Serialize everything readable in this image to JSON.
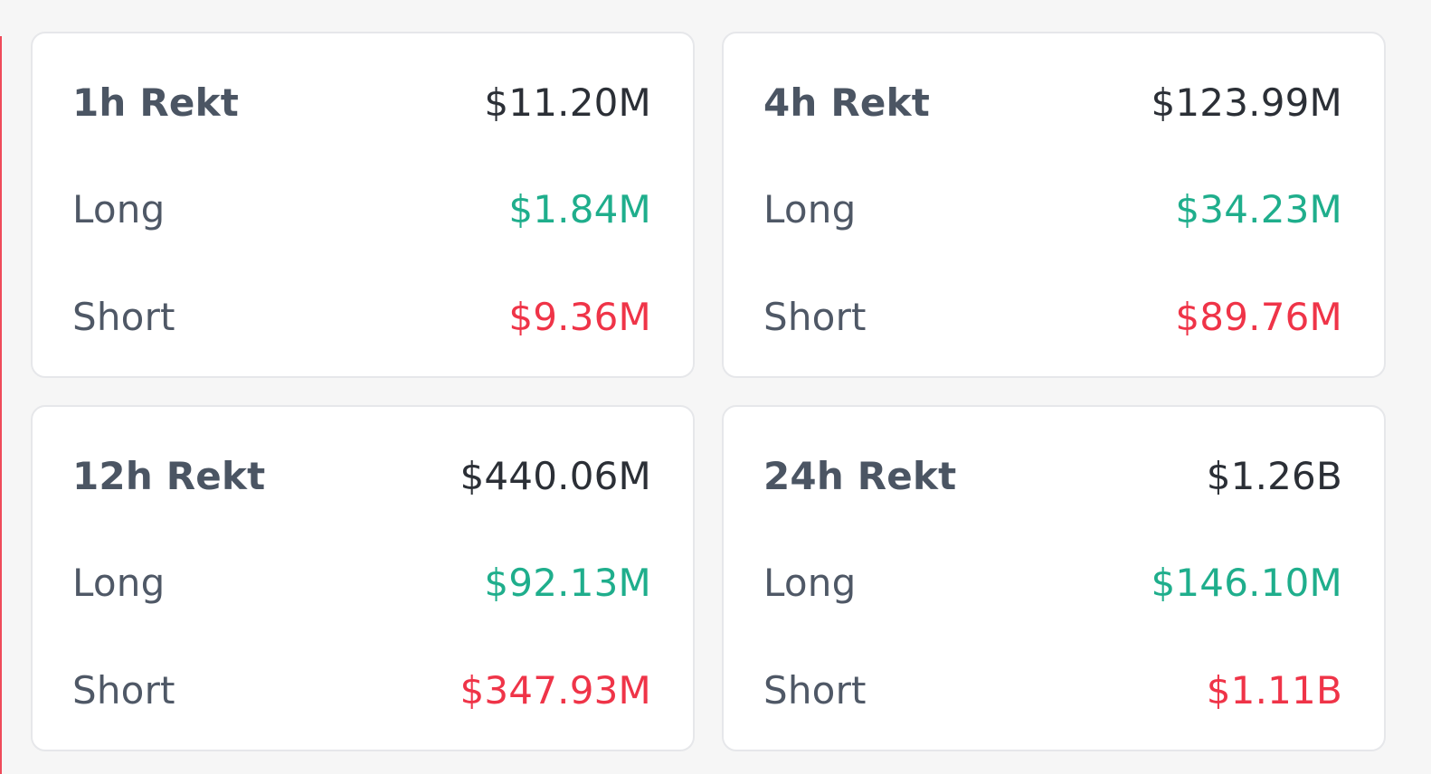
{
  "colors": {
    "long": "#1fae8c",
    "short": "#ef3448",
    "title": "#4b5563",
    "value": "#2b2f36",
    "card_border": "#e6e7ea",
    "background": "#f6f6f6"
  },
  "cards": [
    {
      "title": "1h Rekt",
      "total": "$11.20M",
      "long_label": "Long",
      "long_value": "$1.84M",
      "short_label": "Short",
      "short_value": "$9.36M"
    },
    {
      "title": "4h Rekt",
      "total": "$123.99M",
      "long_label": "Long",
      "long_value": "$34.23M",
      "short_label": "Short",
      "short_value": "$89.76M"
    },
    {
      "title": "12h Rekt",
      "total": "$440.06M",
      "long_label": "Long",
      "long_value": "$92.13M",
      "short_label": "Short",
      "short_value": "$347.93M"
    },
    {
      "title": "24h Rekt",
      "total": "$1.26B",
      "long_label": "Long",
      "long_value": "$146.10M",
      "short_label": "Short",
      "short_value": "$1.11B"
    }
  ]
}
